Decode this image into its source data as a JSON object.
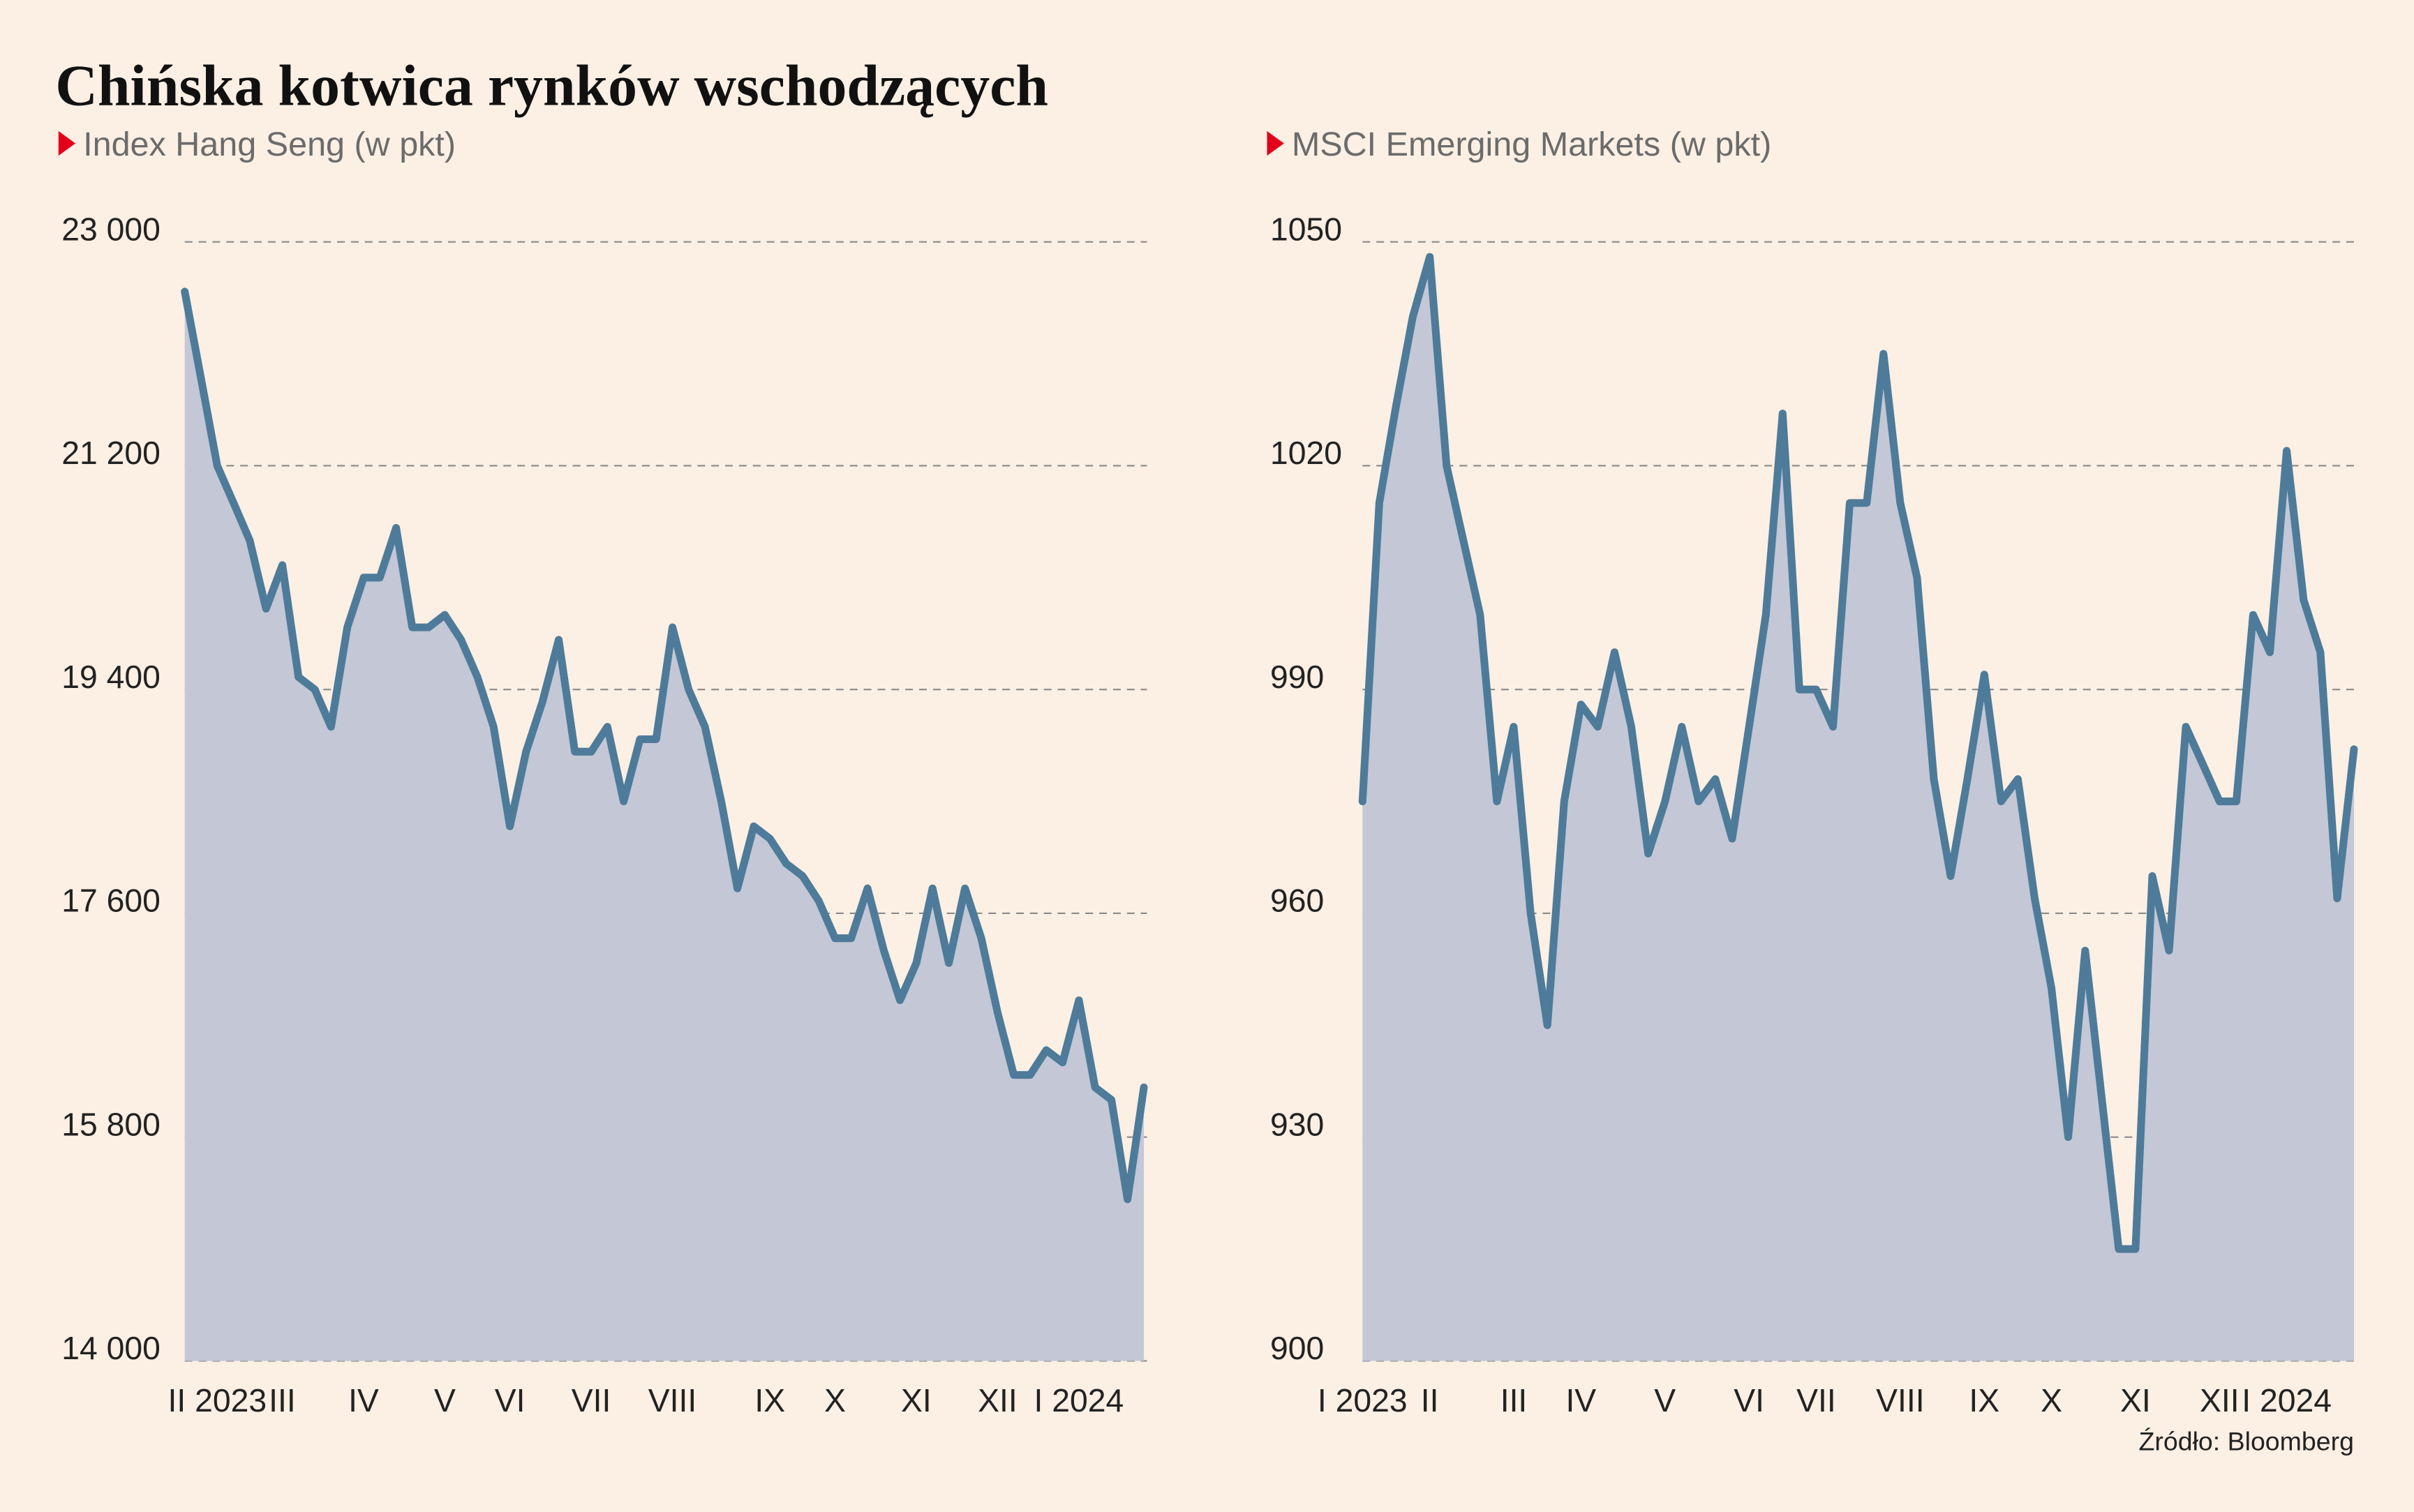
{
  "title": "Chińska kotwica rynków wschodzących",
  "source": "Źródło: Bloomberg",
  "chart_data": [
    {
      "type": "area",
      "title": "Index Hang Seng (w pkt)",
      "color": "#4e7b99",
      "fill": "#c3c7d6",
      "categories": [
        null,
        null,
        "II 2023",
        null,
        null,
        null,
        "III",
        null,
        null,
        null,
        null,
        "IV",
        null,
        null,
        null,
        null,
        "V",
        null,
        null,
        null,
        "VI",
        null,
        null,
        null,
        null,
        "VII",
        null,
        null,
        null,
        null,
        "VIII",
        null,
        null,
        null,
        null,
        null,
        "IX",
        null,
        null,
        null,
        "X",
        null,
        null,
        null,
        null,
        "XI",
        null,
        null,
        null,
        null,
        "XII",
        null,
        null,
        null,
        null,
        "I 2024",
        null,
        null,
        null,
        null
      ],
      "values": [
        22600,
        21900,
        21200,
        20900,
        20600,
        20050,
        20400,
        19500,
        19400,
        19100,
        19900,
        20300,
        20300,
        20700,
        19900,
        19900,
        20000,
        19800,
        19500,
        19100,
        18300,
        18900,
        19300,
        19800,
        18900,
        18900,
        19100,
        18500,
        19000,
        19000,
        19900,
        19400,
        19100,
        18500,
        17800,
        18300,
        18200,
        18000,
        17900,
        17700,
        17400,
        17400,
        17800,
        17300,
        16900,
        17200,
        17800,
        17200,
        17800,
        17400,
        16800,
        16300,
        16300,
        16500,
        16400,
        16900,
        16200,
        16100,
        15300,
        16200
      ],
      "ylim": [
        14000,
        23000
      ],
      "yticks": [
        {
          "value": 23000,
          "label": "23 000"
        },
        {
          "value": 21200,
          "label": "21 200"
        },
        {
          "value": 19400,
          "label": "19 400"
        },
        {
          "value": 17600,
          "label": "17 600"
        },
        {
          "value": 15800,
          "label": "15 800"
        },
        {
          "value": 14000,
          "label": "14 000"
        }
      ],
      "grid": true
    },
    {
      "type": "area",
      "title": "MSCI Emerging Markets (w pkt)",
      "color": "#4e7b99",
      "fill": "#c3c7d6",
      "categories": [
        "I 2023",
        null,
        null,
        null,
        "II",
        null,
        null,
        null,
        null,
        "III",
        null,
        null,
        null,
        "IV",
        null,
        null,
        null,
        null,
        "V",
        null,
        null,
        null,
        null,
        "VI",
        null,
        null,
        null,
        "VII",
        null,
        null,
        null,
        null,
        "VIII",
        null,
        null,
        null,
        null,
        "IX",
        null,
        null,
        null,
        "X",
        null,
        null,
        null,
        null,
        "XI",
        null,
        null,
        null,
        null,
        "XII",
        null,
        null,
        null,
        "I 2024",
        null,
        null,
        null,
        null
      ],
      "values": [
        975,
        1015,
        1028,
        1040,
        1048,
        1020,
        1010,
        1000,
        975,
        985,
        960,
        945,
        975,
        988,
        985,
        995,
        985,
        968,
        975,
        985,
        975,
        978,
        970,
        985,
        1000,
        1027,
        990,
        990,
        985,
        1015,
        1015,
        1035,
        1015,
        1005,
        978,
        965,
        978,
        992,
        975,
        978,
        962,
        950,
        930,
        955,
        935,
        915,
        915,
        965,
        955,
        985,
        980,
        975,
        975,
        1000,
        995,
        1022,
        1002,
        995,
        962,
        982
      ],
      "ylim": [
        900,
        1050
      ],
      "yticks": [
        1050,
        1020,
        990,
        960,
        930,
        900
      ],
      "grid": true
    }
  ]
}
